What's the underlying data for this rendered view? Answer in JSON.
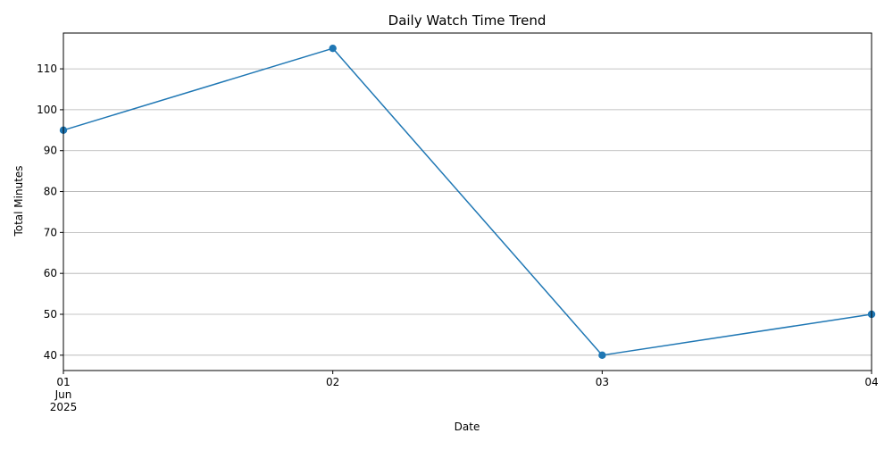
{
  "chart_data": {
    "type": "line",
    "title": "Daily Watch Time Trend",
    "xlabel": "Date",
    "ylabel": "Total Minutes",
    "x": [
      "2025-06-01",
      "2025-06-02",
      "2025-06-03",
      "2025-06-04"
    ],
    "x_tick_labels": [
      {
        "day": "01",
        "month": "Jun",
        "year": "2025"
      },
      {
        "day": "02"
      },
      {
        "day": "03"
      },
      {
        "day": "04"
      }
    ],
    "series": [
      {
        "values": [
          95,
          115,
          40,
          50
        ],
        "color": "#1f77b4",
        "marker": "circle"
      }
    ],
    "ylim": [
      36.25,
      118.75
    ],
    "y_ticks": [
      40,
      50,
      60,
      70,
      80,
      90,
      100,
      110
    ],
    "grid": "horizontal",
    "legend": "none"
  }
}
